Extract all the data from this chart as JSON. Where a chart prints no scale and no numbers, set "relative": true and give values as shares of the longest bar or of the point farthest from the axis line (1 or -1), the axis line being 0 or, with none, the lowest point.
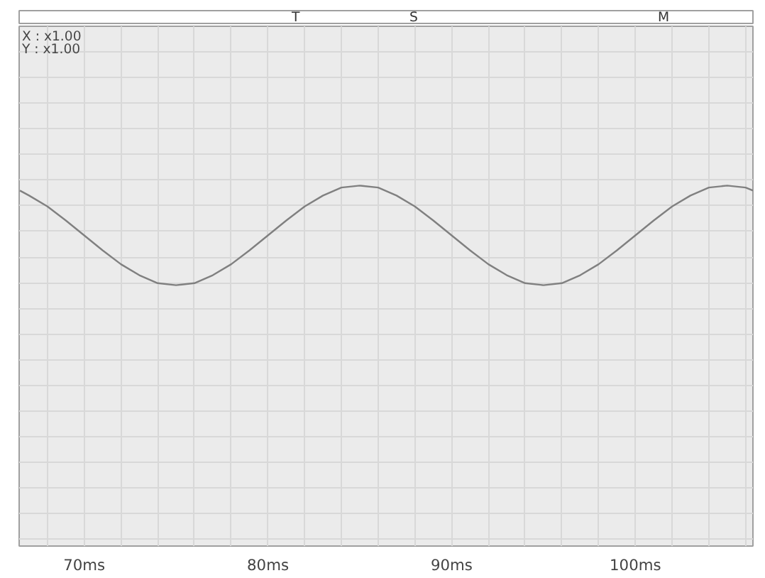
{
  "chart_data": {
    "type": "line",
    "relative": true,
    "x": [
      66.5,
      67,
      68,
      69,
      70,
      71,
      72,
      73,
      74,
      75,
      76,
      77,
      78,
      79,
      80,
      81,
      82,
      83,
      84,
      85,
      86,
      87,
      88,
      89,
      90,
      91,
      92,
      93,
      94,
      95,
      96,
      97,
      98,
      99,
      100,
      101,
      102,
      103,
      104,
      105,
      106,
      106.4
    ],
    "series": [
      {
        "color": "#808080",
        "values": [
          0.95,
          0.9,
          0.79,
          0.65,
          0.5,
          0.35,
          0.21,
          0.1,
          0.02,
          0,
          0.02,
          0.1,
          0.21,
          0.35,
          0.5,
          0.65,
          0.79,
          0.9,
          0.98,
          1,
          0.98,
          0.9,
          0.79,
          0.65,
          0.5,
          0.35,
          0.21,
          0.1,
          0.02,
          0,
          0.02,
          0.1,
          0.21,
          0.35,
          0.5,
          0.65,
          0.79,
          0.9,
          0.98,
          1,
          0.98,
          0.95
        ]
      }
    ],
    "xlim": [
      66.46,
      106.4
    ],
    "xticks": [
      {
        "value": 68,
        "label": null
      },
      {
        "value": 70,
        "label": "70ms"
      },
      {
        "value": 72,
        "label": null
      },
      {
        "value": 74,
        "label": null
      },
      {
        "value": 76,
        "label": null
      },
      {
        "value": 78,
        "label": null
      },
      {
        "value": 80,
        "label": "80ms"
      },
      {
        "value": 82,
        "label": null
      },
      {
        "value": 84,
        "label": null
      },
      {
        "value": 86,
        "label": null
      },
      {
        "value": 88,
        "label": null
      },
      {
        "value": 90,
        "label": "90ms"
      },
      {
        "value": 92,
        "label": null
      },
      {
        "value": 94,
        "label": null
      },
      {
        "value": 96,
        "label": null
      },
      {
        "value": 98,
        "label": null
      },
      {
        "value": 100,
        "label": "100ms"
      },
      {
        "value": 102,
        "label": null
      },
      {
        "value": 104,
        "label": null
      },
      {
        "value": 106,
        "label": null
      }
    ],
    "grid": true,
    "marker": "none",
    "line_style": "solid",
    "annotations": [
      "X : x1.00",
      "Y : x1.00",
      "T",
      "S",
      "M"
    ]
  }
}
